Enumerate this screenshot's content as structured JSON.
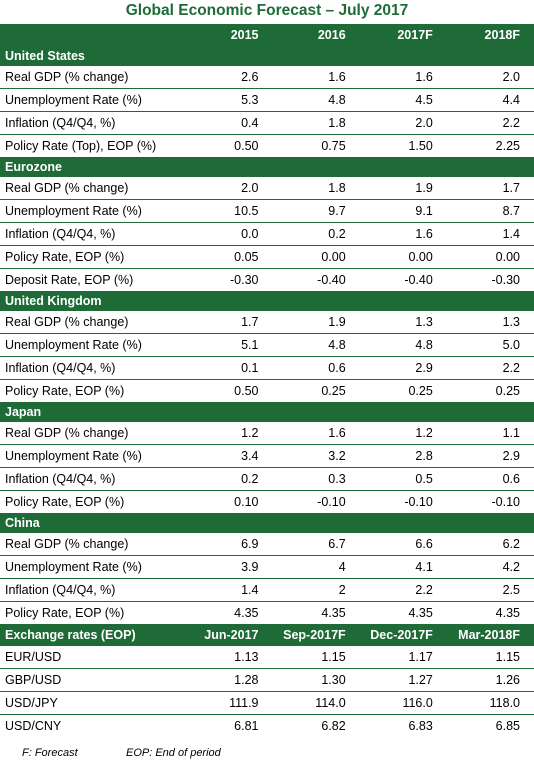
{
  "title": "Global Economic Forecast – July 2017",
  "columns": [
    "",
    "2015",
    "2016",
    "2017F",
    "2018F"
  ],
  "sections": [
    {
      "name": "United States",
      "rows": [
        {
          "label": "Real GDP (% change)",
          "values": [
            "2.6",
            "1.6",
            "1.6",
            "2.0"
          ]
        },
        {
          "label": "Unemployment Rate (%)",
          "values": [
            "5.3",
            "4.8",
            "4.5",
            "4.4"
          ]
        },
        {
          "label": "Inflation (Q4/Q4, %)",
          "values": [
            "0.4",
            "1.8",
            "2.0",
            "2.2"
          ]
        },
        {
          "label": "Policy Rate (Top), EOP (%)",
          "values": [
            "0.50",
            "0.75",
            "1.50",
            "2.25"
          ]
        }
      ]
    },
    {
      "name": "Eurozone",
      "rows": [
        {
          "label": "Real GDP (% change)",
          "values": [
            "2.0",
            "1.8",
            "1.9",
            "1.7"
          ]
        },
        {
          "label": "Unemployment Rate (%)",
          "values": [
            "10.5",
            "9.7",
            "9.1",
            "8.7"
          ]
        },
        {
          "label": "Inflation (Q4/Q4, %)",
          "values": [
            "0.0",
            "0.2",
            "1.6",
            "1.4"
          ]
        },
        {
          "label": "Policy Rate, EOP (%)",
          "values": [
            "0.05",
            "0.00",
            "0.00",
            "0.00"
          ]
        },
        {
          "label": "Deposit Rate, EOP (%)",
          "values": [
            "-0.30",
            "-0.40",
            "-0.40",
            "-0.30"
          ]
        }
      ]
    },
    {
      "name": "United Kingdom",
      "rows": [
        {
          "label": "Real GDP (% change)",
          "values": [
            "1.7",
            "1.9",
            "1.3",
            "1.3"
          ]
        },
        {
          "label": "Unemployment Rate (%)",
          "values": [
            "5.1",
            "4.8",
            "4.8",
            "5.0"
          ]
        },
        {
          "label": "Inflation (Q4/Q4, %)",
          "values": [
            "0.1",
            "0.6",
            "2.9",
            "2.2"
          ]
        },
        {
          "label": "Policy Rate, EOP (%)",
          "values": [
            "0.50",
            "0.25",
            "0.25",
            "0.25"
          ]
        }
      ]
    },
    {
      "name": "Japan",
      "rows": [
        {
          "label": "Real GDP (% change)",
          "values": [
            "1.2",
            "1.6",
            "1.2",
            "1.1"
          ]
        },
        {
          "label": "Unemployment Rate (%)",
          "values": [
            "3.4",
            "3.2",
            "2.8",
            "2.9"
          ]
        },
        {
          "label": "Inflation (Q4/Q4, %)",
          "values": [
            "0.2",
            "0.3",
            "0.5",
            "0.6"
          ]
        },
        {
          "label": "Policy Rate, EOP (%)",
          "values": [
            "0.10",
            "-0.10",
            "-0.10",
            "-0.10"
          ]
        }
      ]
    },
    {
      "name": "China",
      "rows": [
        {
          "label": "Real GDP (% change)",
          "values": [
            "6.9",
            "6.7",
            "6.6",
            "6.2"
          ]
        },
        {
          "label": "Unemployment Rate (%)",
          "values": [
            "3.9",
            "4",
            "4.1",
            "4.2"
          ]
        },
        {
          "label": "Inflation (Q4/Q4, %)",
          "values": [
            "1.4",
            "2",
            "2.2",
            "2.5"
          ]
        },
        {
          "label": "Policy Rate, EOP (%)",
          "values": [
            "4.35",
            "4.35",
            "4.35",
            "4.35"
          ]
        }
      ]
    }
  ],
  "fx": {
    "header": [
      "Exchange rates (EOP)",
      "Jun-2017",
      "Sep-2017F",
      "Dec-2017F",
      "Mar-2018F"
    ],
    "rows": [
      {
        "label": "EUR/USD",
        "values": [
          "1.13",
          "1.15",
          "1.17",
          "1.15"
        ]
      },
      {
        "label": "GBP/USD",
        "values": [
          "1.28",
          "1.30",
          "1.27",
          "1.26"
        ]
      },
      {
        "label": "USD/JPY",
        "values": [
          "111.9",
          "114.0",
          "116.0",
          "118.0"
        ]
      },
      {
        "label": "USD/CNY",
        "values": [
          "6.81",
          "6.82",
          "6.83",
          "6.85"
        ]
      }
    ]
  },
  "footer": {
    "forecast_note": "F: Forecast",
    "eop_note": "EOP: End of period"
  },
  "colors": {
    "brand_green": "#1e6b37",
    "text": "#000000",
    "background": "#ffffff"
  }
}
